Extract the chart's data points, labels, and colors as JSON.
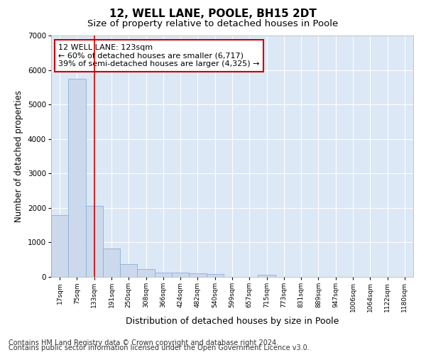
{
  "title": "12, WELL LANE, POOLE, BH15 2DT",
  "subtitle": "Size of property relative to detached houses in Poole",
  "xlabel": "Distribution of detached houses by size in Poole",
  "ylabel": "Number of detached properties",
  "bin_labels": [
    "17sqm",
    "75sqm",
    "133sqm",
    "191sqm",
    "250sqm",
    "308sqm",
    "366sqm",
    "424sqm",
    "482sqm",
    "540sqm",
    "599sqm",
    "657sqm",
    "715sqm",
    "773sqm",
    "831sqm",
    "889sqm",
    "947sqm",
    "1006sqm",
    "1064sqm",
    "1122sqm",
    "1180sqm"
  ],
  "bar_values": [
    1800,
    5750,
    2050,
    820,
    370,
    230,
    125,
    115,
    110,
    75,
    0,
    0,
    60,
    0,
    0,
    0,
    0,
    0,
    0,
    0,
    0
  ],
  "bar_color": "#ccd9ec",
  "bar_edgecolor": "#8ab0d8",
  "vline_x_index": 2,
  "vline_color": "#cc0000",
  "annotation_line1": "12 WELL LANE: 123sqm",
  "annotation_line2": "← 60% of detached houses are smaller (6,717)",
  "annotation_line3": "39% of semi-detached houses are larger (4,325) →",
  "annotation_box_color": "#cc0000",
  "ylim": [
    0,
    7000
  ],
  "yticks": [
    0,
    1000,
    2000,
    3000,
    4000,
    5000,
    6000,
    7000
  ],
  "background_color": "#dce8f5",
  "grid_color": "#ffffff",
  "footer_line1": "Contains HM Land Registry data © Crown copyright and database right 2024.",
  "footer_line2": "Contains public sector information licensed under the Open Government Licence v3.0.",
  "title_fontsize": 11,
  "subtitle_fontsize": 9.5,
  "annotation_fontsize": 8,
  "ylabel_fontsize": 8.5,
  "xlabel_fontsize": 9,
  "footer_fontsize": 7
}
